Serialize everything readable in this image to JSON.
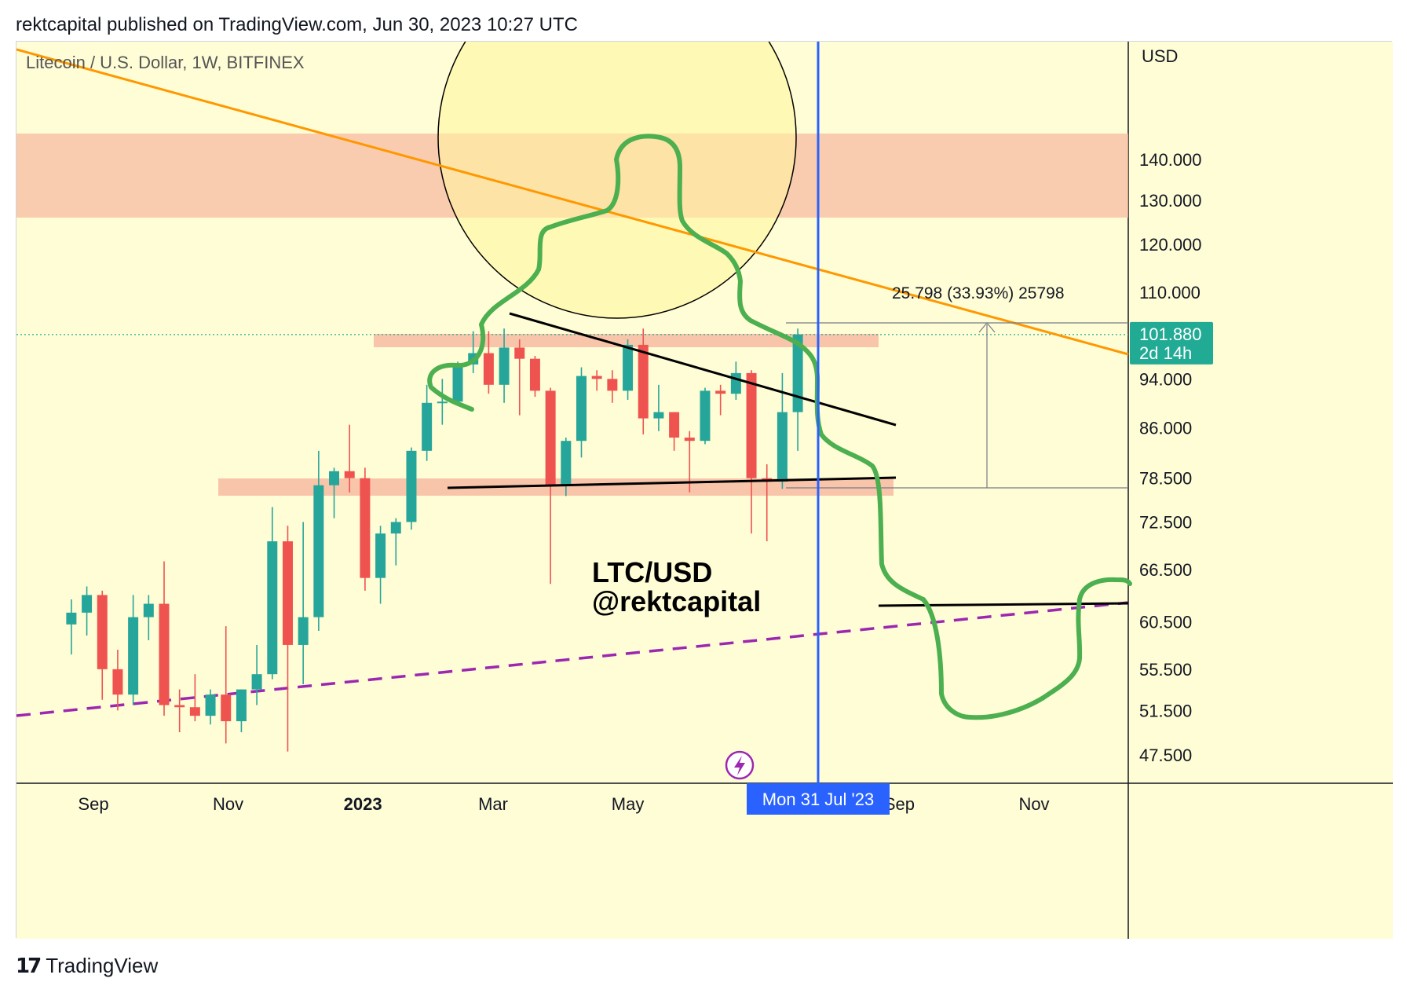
{
  "header": {
    "published": "rektcapital published on TradingView.com, Jun 30, 2023 10:27 UTC"
  },
  "footer": {
    "logo_glyph": "17",
    "brand": "TradingView"
  },
  "chart_data": {
    "type": "candlestick",
    "title": "Litecoin / U.S. Dollar, 1W, BITFINEX",
    "currency_label": "USD",
    "watermark": [
      "LTC/USD",
      "@rektcapital"
    ],
    "y_scale": "log",
    "y_ticks": [
      "140.000",
      "130.000",
      "120.000",
      "110.000",
      "94.000",
      "86.000",
      "78.500",
      "72.500",
      "66.500",
      "60.500",
      "55.500",
      "51.500",
      "47.500"
    ],
    "y_tick_values": [
      140,
      130,
      120,
      110,
      94,
      86,
      78.5,
      72.5,
      66.5,
      60.5,
      55.5,
      51.5,
      47.5
    ],
    "x_labels": [
      "Sep",
      "Nov",
      "2023",
      "Mar",
      "May",
      "Sep",
      "Nov"
    ],
    "x_label_dates": [
      "2022-09-01",
      "2022-11-01",
      "2023-01-01",
      "2023-03-01",
      "2023-05-01",
      "2023-09-01",
      "2023-11-01"
    ],
    "last_price": "101.880",
    "countdown": "2d 14h",
    "crosshair_date_label": "Mon 31 Jul '23",
    "measure_label": "25.798 (33.93%) 25798",
    "colors": {
      "background": "#fffdd6",
      "up": "#26a69a",
      "down": "#ef5350",
      "resistance_zone": "#f8bba2",
      "trendline": "#ff9800",
      "projection": "#4caf50",
      "support_dashed": "#9c27b0",
      "crosshair": "#2962ff",
      "price_tag": "#22ab94"
    },
    "candles": [
      {
        "date": "2022-08-22",
        "o": 60.2,
        "h": 63.0,
        "l": 57.0,
        "c": 61.5
      },
      {
        "date": "2022-08-29",
        "o": 61.5,
        "h": 64.5,
        "l": 59.0,
        "c": 63.5
      },
      {
        "date": "2022-09-05",
        "o": 63.5,
        "h": 64.0,
        "l": 52.5,
        "c": 55.5
      },
      {
        "date": "2022-09-12",
        "o": 55.5,
        "h": 57.5,
        "l": 51.5,
        "c": 53.0
      },
      {
        "date": "2022-09-19",
        "o": 53.0,
        "h": 63.5,
        "l": 52.0,
        "c": 61.0
      },
      {
        "date": "2022-09-26",
        "o": 61.0,
        "h": 63.5,
        "l": 58.5,
        "c": 62.5
      },
      {
        "date": "2022-10-03",
        "o": 62.5,
        "h": 67.5,
        "l": 51.0,
        "c": 52.0
      },
      {
        "date": "2022-10-10",
        "o": 52.0,
        "h": 53.5,
        "l": 49.5,
        "c": 51.8
      },
      {
        "date": "2022-10-17",
        "o": 51.8,
        "h": 55.0,
        "l": 50.5,
        "c": 51.0
      },
      {
        "date": "2022-10-24",
        "o": 51.0,
        "h": 53.5,
        "l": 50.2,
        "c": 53.0
      },
      {
        "date": "2022-10-31",
        "o": 53.0,
        "h": 60.0,
        "l": 48.5,
        "c": 50.5
      },
      {
        "date": "2022-11-07",
        "o": 50.5,
        "h": 53.5,
        "l": 49.5,
        "c": 53.5
      },
      {
        "date": "2022-11-14",
        "o": 53.5,
        "h": 58.0,
        "l": 52.0,
        "c": 55.0
      },
      {
        "date": "2022-11-21",
        "o": 55.0,
        "h": 74.5,
        "l": 54.5,
        "c": 70.0
      },
      {
        "date": "2022-11-28",
        "o": 70.0,
        "h": 72.0,
        "l": 47.8,
        "c": 58.0
      },
      {
        "date": "2022-12-05",
        "o": 58.0,
        "h": 72.5,
        "l": 54.0,
        "c": 61.0
      },
      {
        "date": "2022-12-12",
        "o": 61.0,
        "h": 82.5,
        "l": 59.5,
        "c": 77.5
      },
      {
        "date": "2022-12-19",
        "o": 77.5,
        "h": 80.0,
        "l": 73.0,
        "c": 79.5
      },
      {
        "date": "2022-12-26",
        "o": 79.5,
        "h": 86.5,
        "l": 76.5,
        "c": 78.5
      },
      {
        "date": "2023-01-02",
        "o": 78.5,
        "h": 80.0,
        "l": 64.0,
        "c": 65.5
      },
      {
        "date": "2023-01-09",
        "o": 65.5,
        "h": 72.0,
        "l": 62.5,
        "c": 71.0
      },
      {
        "date": "2023-01-16",
        "o": 71.0,
        "h": 73.0,
        "l": 67.0,
        "c": 72.5
      },
      {
        "date": "2023-01-23",
        "o": 72.5,
        "h": 83.0,
        "l": 71.5,
        "c": 82.5
      },
      {
        "date": "2023-01-30",
        "o": 82.5,
        "h": 93.0,
        "l": 81.0,
        "c": 90.0
      },
      {
        "date": "2023-02-06",
        "o": 90.0,
        "h": 94.0,
        "l": 86.5,
        "c": 90.2
      },
      {
        "date": "2023-02-13",
        "o": 90.2,
        "h": 97.0,
        "l": 89.5,
        "c": 96.5
      },
      {
        "date": "2023-02-20",
        "o": 96.5,
        "h": 102.5,
        "l": 95.0,
        "c": 98.5
      },
      {
        "date": "2023-02-27",
        "o": 98.5,
        "h": 102.5,
        "l": 91.5,
        "c": 93.0
      },
      {
        "date": "2023-03-06",
        "o": 93.0,
        "h": 103.0,
        "l": 90.0,
        "c": 99.5
      },
      {
        "date": "2023-03-13",
        "o": 99.5,
        "h": 101.0,
        "l": 88.0,
        "c": 97.5
      },
      {
        "date": "2023-03-20",
        "o": 97.5,
        "h": 98.0,
        "l": 91.0,
        "c": 92.0
      },
      {
        "date": "2023-03-27",
        "o": 92.0,
        "h": 92.5,
        "l": 64.8,
        "c": 77.5
      },
      {
        "date": "2023-04-03",
        "o": 77.5,
        "h": 84.5,
        "l": 76.0,
        "c": 84.0
      },
      {
        "date": "2023-04-10",
        "o": 84.0,
        "h": 96.0,
        "l": 81.5,
        "c": 94.5
      },
      {
        "date": "2023-04-17",
        "o": 94.5,
        "h": 95.5,
        "l": 92.0,
        "c": 94.0
      },
      {
        "date": "2023-04-24",
        "o": 94.0,
        "h": 95.5,
        "l": 90.0,
        "c": 92.0
      },
      {
        "date": "2023-05-01",
        "o": 92.0,
        "h": 101.0,
        "l": 90.5,
        "c": 100.0
      },
      {
        "date": "2023-05-08",
        "o": 100.0,
        "h": 103.0,
        "l": 85.0,
        "c": 87.5
      },
      {
        "date": "2023-05-15",
        "o": 87.5,
        "h": 93.0,
        "l": 85.5,
        "c": 88.5
      },
      {
        "date": "2023-05-22",
        "o": 88.5,
        "h": 88.5,
        "l": 82.5,
        "c": 84.5
      },
      {
        "date": "2023-05-29",
        "o": 84.5,
        "h": 85.5,
        "l": 76.5,
        "c": 84.0
      },
      {
        "date": "2023-06-05",
        "o": 84.0,
        "h": 92.5,
        "l": 83.5,
        "c": 92.0
      },
      {
        "date": "2023-06-12",
        "o": 92.0,
        "h": 93.0,
        "l": 88.0,
        "c": 91.5
      },
      {
        "date": "2023-06-19",
        "o": 91.5,
        "h": 97.0,
        "l": 90.5,
        "c": 95.0
      },
      {
        "date": "2023-06-26",
        "o": 95.0,
        "h": 95.5,
        "l": 71.0,
        "c": 78.5
      },
      {
        "date": "2023-07-03",
        "o": 78.5,
        "h": 80.5,
        "l": 70.0,
        "c": 78.0
      },
      {
        "date": "2023-07-10",
        "o": 78.0,
        "h": 95.0,
        "l": 77.0,
        "c": 88.5
      },
      {
        "date": "2023-07-17",
        "o": 88.5,
        "h": 103.0,
        "l": 82.5,
        "c": 101.88
      }
    ]
  }
}
